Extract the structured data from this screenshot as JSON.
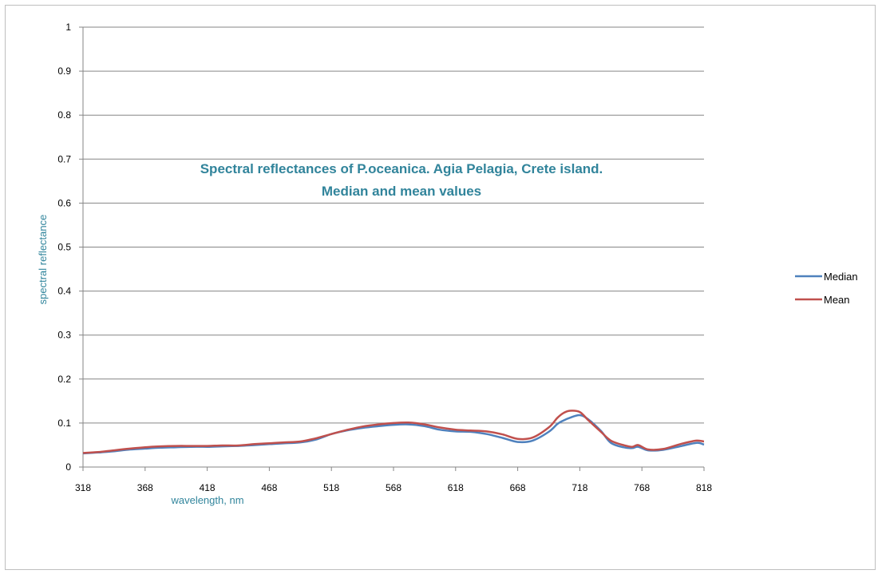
{
  "chart_data": {
    "type": "line",
    "title": [
      "Spectral reflectances of P.oceanica. Agia Pelagia, Crete island.",
      "Median and mean values"
    ],
    "xlabel": "wavelength, nm",
    "ylabel": "spectral reflectance",
    "xlim": [
      318,
      818
    ],
    "ylim": [
      0,
      1
    ],
    "x_ticks": [
      "318",
      "368",
      "418",
      "468",
      "518",
      "568",
      "618",
      "668",
      "718",
      "768",
      "818"
    ],
    "y_ticks": [
      "0",
      "0.1",
      "0.2",
      "0.3",
      "0.4",
      "0.5",
      "0.6",
      "0.7",
      "0.8",
      "0.9",
      "1"
    ],
    "grid": "horizontal",
    "legend_position": "right",
    "x": [
      318,
      330,
      343,
      356,
      368,
      380,
      393,
      405,
      418,
      430,
      443,
      456,
      468,
      480,
      493,
      505,
      518,
      530,
      543,
      556,
      568,
      580,
      593,
      605,
      618,
      630,
      643,
      656,
      668,
      680,
      693,
      700,
      705,
      710,
      718,
      725,
      735,
      743,
      753,
      760,
      765,
      773,
      785,
      800,
      812,
      818
    ],
    "series": [
      {
        "name": "Median",
        "color": "#4f81bd",
        "values": [
          0.031,
          0.033,
          0.036,
          0.04,
          0.042,
          0.044,
          0.045,
          0.046,
          0.046,
          0.047,
          0.048,
          0.05,
          0.052,
          0.054,
          0.056,
          0.062,
          0.075,
          0.083,
          0.089,
          0.093,
          0.096,
          0.097,
          0.093,
          0.085,
          0.081,
          0.08,
          0.075,
          0.066,
          0.057,
          0.06,
          0.08,
          0.098,
          0.106,
          0.112,
          0.118,
          0.108,
          0.082,
          0.055,
          0.045,
          0.043,
          0.046,
          0.038,
          0.039,
          0.048,
          0.055,
          0.051
        ]
      },
      {
        "name": "Mean",
        "color": "#c0504d",
        "values": [
          0.032,
          0.034,
          0.038,
          0.042,
          0.045,
          0.047,
          0.048,
          0.048,
          0.048,
          0.049,
          0.049,
          0.052,
          0.054,
          0.056,
          0.058,
          0.065,
          0.075,
          0.084,
          0.092,
          0.097,
          0.1,
          0.101,
          0.097,
          0.09,
          0.085,
          0.083,
          0.081,
          0.074,
          0.064,
          0.067,
          0.09,
          0.112,
          0.123,
          0.128,
          0.125,
          0.106,
          0.08,
          0.06,
          0.05,
          0.046,
          0.05,
          0.04,
          0.041,
          0.053,
          0.06,
          0.058
        ]
      }
    ]
  }
}
